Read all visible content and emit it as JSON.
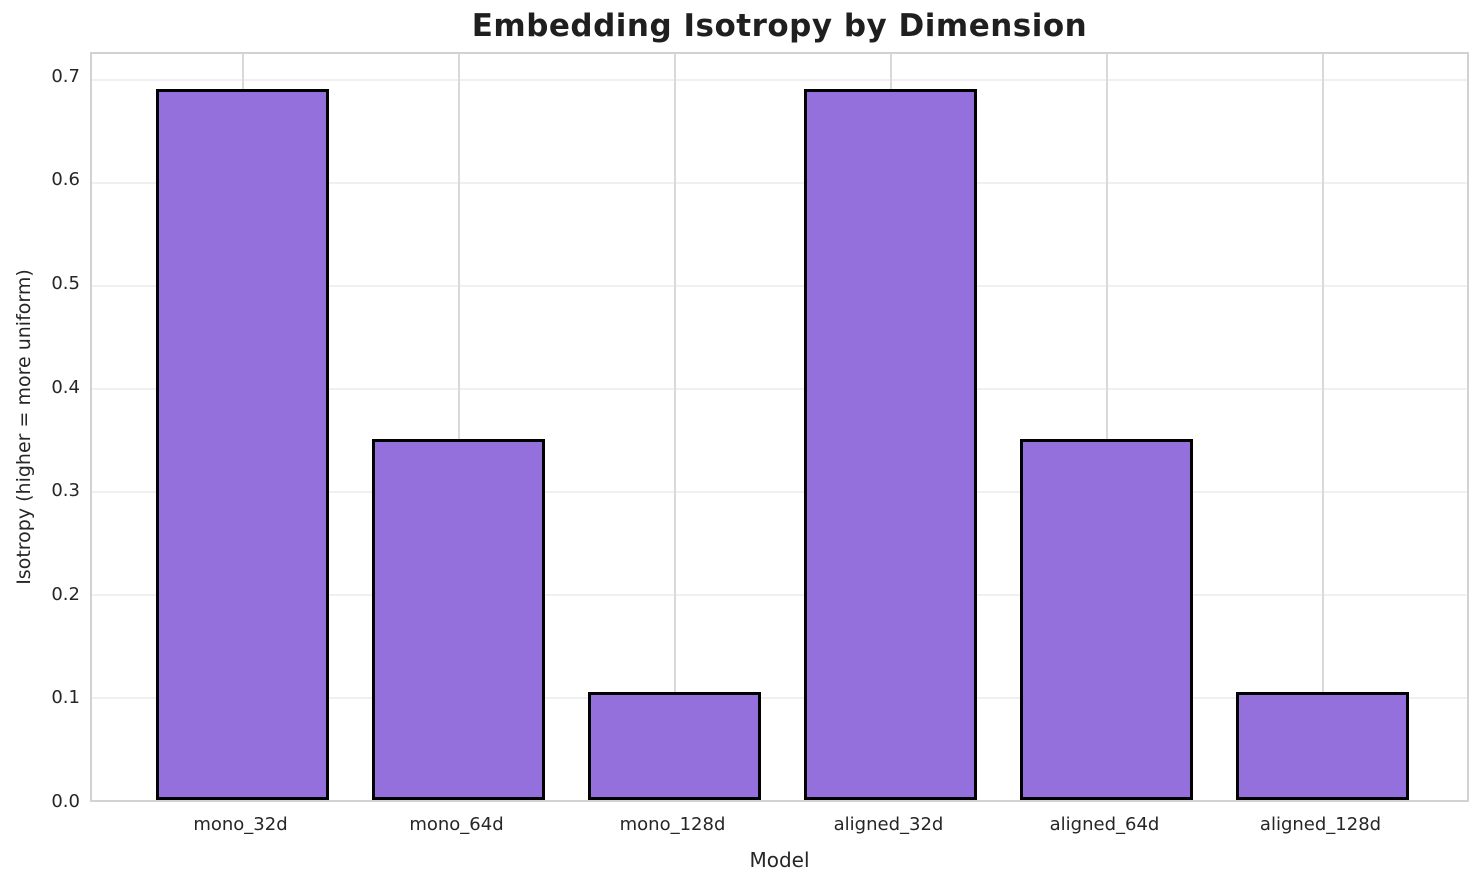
{
  "chart_data": {
    "type": "bar",
    "title": "Embedding Isotropy by Dimension",
    "xlabel": "Model",
    "ylabel": "Isotropy (higher = more uniform)",
    "categories": [
      "mono_32d",
      "mono_64d",
      "mono_128d",
      "aligned_32d",
      "aligned_64d",
      "aligned_128d"
    ],
    "values": [
      0.69,
      0.35,
      0.105,
      0.69,
      0.35,
      0.105
    ],
    "yticks": [
      0.0,
      0.1,
      0.2,
      0.3,
      0.4,
      0.5,
      0.6,
      0.7
    ],
    "ytick_labels": [
      "0.0",
      "0.1",
      "0.2",
      "0.3",
      "0.4",
      "0.5",
      "0.6",
      "0.7"
    ],
    "ylim": [
      0,
      0.724
    ],
    "grid": true,
    "legend_position": "none",
    "colors": {
      "bar_fill": "#9370DB",
      "bar_edge": "#000000",
      "grid_horizontal": "#f0f0f0",
      "grid_vertical": "#d9d9d9",
      "spine": "#d2d2d2",
      "title_text": "#1f1f1f",
      "tick_text": "#262626"
    }
  }
}
